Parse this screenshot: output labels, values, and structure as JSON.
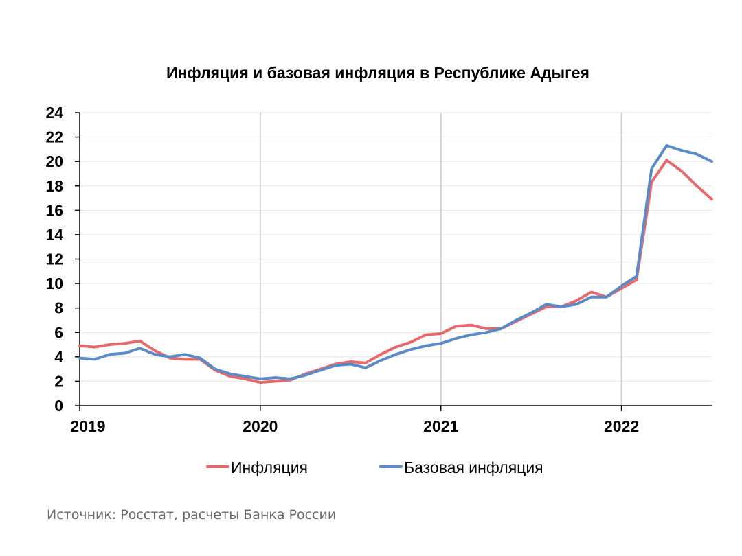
{
  "chart_data": {
    "type": "line",
    "title": "Инфляция и базовая инфляция в Республике Адыгея",
    "xlabel": "",
    "ylabel": "",
    "ylim": [
      0,
      24
    ],
    "yticks": [
      "0",
      "2",
      "4",
      "6",
      "8",
      "10",
      "12",
      "14",
      "16",
      "18",
      "20",
      "22",
      "24"
    ],
    "xticks": [
      "2019",
      "2020",
      "2021",
      "2022"
    ],
    "x_start": "2019-01",
    "x_end": "2022-07",
    "grid": true,
    "legend_position": "bottom",
    "x": [
      "2019-01",
      "2019-02",
      "2019-03",
      "2019-04",
      "2019-05",
      "2019-06",
      "2019-07",
      "2019-08",
      "2019-09",
      "2019-10",
      "2019-11",
      "2019-12",
      "2020-01",
      "2020-02",
      "2020-03",
      "2020-04",
      "2020-05",
      "2020-06",
      "2020-07",
      "2020-08",
      "2020-09",
      "2020-10",
      "2020-11",
      "2020-12",
      "2021-01",
      "2021-02",
      "2021-03",
      "2021-04",
      "2021-05",
      "2021-06",
      "2021-07",
      "2021-08",
      "2021-09",
      "2021-10",
      "2021-11",
      "2021-12",
      "2022-01",
      "2022-02",
      "2022-03",
      "2022-04",
      "2022-05",
      "2022-06",
      "2022-07"
    ],
    "series": [
      {
        "name": "Инфляция",
        "color": "#e8696b",
        "values": [
          4.9,
          4.8,
          5.0,
          5.1,
          5.3,
          4.5,
          3.9,
          3.8,
          3.8,
          2.9,
          2.4,
          2.2,
          1.9,
          2.0,
          2.1,
          2.6,
          3.0,
          3.4,
          3.6,
          3.5,
          4.2,
          4.8,
          5.2,
          5.8,
          5.9,
          6.5,
          6.6,
          6.3,
          6.3,
          6.9,
          7.5,
          8.1,
          8.1,
          8.6,
          9.3,
          8.9,
          9.6,
          10.3,
          18.3,
          20.1,
          19.2,
          18.0,
          16.9
        ]
      },
      {
        "name": "Базовая инфляция",
        "color": "#5b8bc6",
        "values": [
          3.9,
          3.8,
          4.2,
          4.3,
          4.7,
          4.2,
          4.0,
          4.2,
          3.9,
          3.0,
          2.6,
          2.4,
          2.2,
          2.3,
          2.2,
          2.5,
          2.9,
          3.3,
          3.4,
          3.1,
          3.7,
          4.2,
          4.6,
          4.9,
          5.1,
          5.5,
          5.8,
          6.0,
          6.3,
          7.0,
          7.6,
          8.3,
          8.1,
          8.3,
          8.9,
          8.9,
          9.8,
          10.6,
          19.4,
          21.3,
          20.9,
          20.6,
          20.0
        ]
      }
    ]
  },
  "source_note": "Источник: Росстат, расчеты Банка России"
}
